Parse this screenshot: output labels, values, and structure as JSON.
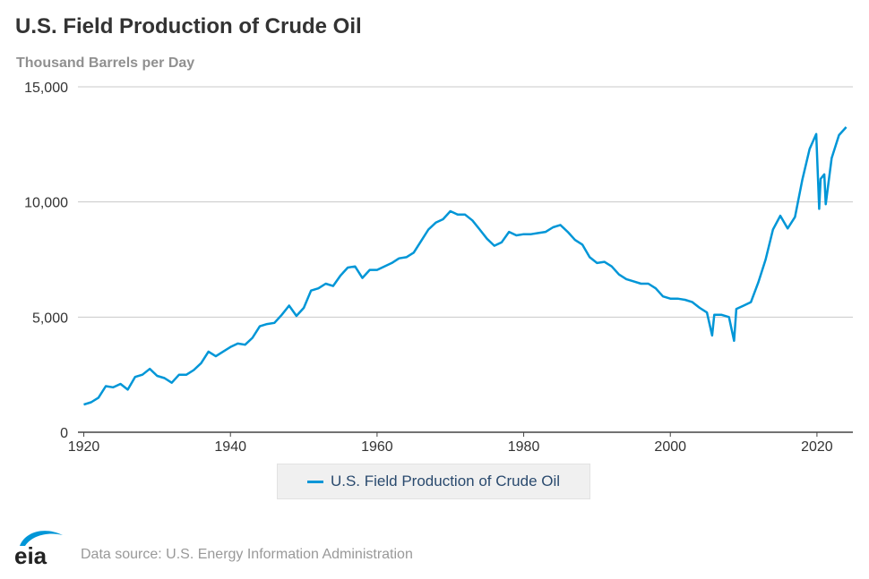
{
  "chart_data": {
    "type": "line",
    "title": "U.S. Field Production of Crude Oil",
    "subtitle": "Thousand Barrels per Day",
    "xlabel": "",
    "ylabel": "",
    "xlim": [
      1919.2,
      2024.9
    ],
    "ylim": [
      0,
      15000
    ],
    "grid": true,
    "legend_placement": "bottom",
    "x_ticks": [
      "1920",
      "1940",
      "1960",
      "1980",
      "2000",
      "2020"
    ],
    "y_ticks": [
      "0",
      "5,000",
      "10,000",
      "15,000"
    ],
    "colors": {
      "line": "#0096d7"
    },
    "series": [
      {
        "name": "U.S. Field Production of Crude Oil",
        "x": [
          1920,
          1921,
          1922,
          1923,
          1924,
          1925,
          1926,
          1927,
          1928,
          1929,
          1930,
          1931,
          1932,
          1933,
          1934,
          1935,
          1936,
          1937,
          1938,
          1939,
          1940,
          1941,
          1942,
          1943,
          1944,
          1945,
          1946,
          1947,
          1948,
          1949,
          1950,
          1951,
          1952,
          1953,
          1954,
          1955,
          1956,
          1957,
          1958,
          1959,
          1960,
          1961,
          1962,
          1963,
          1964,
          1965,
          1966,
          1967,
          1968,
          1969,
          1970,
          1971,
          1972,
          1973,
          1974,
          1975,
          1976,
          1977,
          1978,
          1979,
          1980,
          1981,
          1982,
          1983,
          1984,
          1985,
          1986,
          1987,
          1988,
          1989,
          1990,
          1991,
          1992,
          1993,
          1994,
          1995,
          1996,
          1997,
          1998,
          1999,
          2000,
          2001,
          2002,
          2003,
          2004,
          2005,
          2005.7,
          2006,
          2007,
          2008,
          2008.7,
          2009,
          2010,
          2011,
          2012,
          2013,
          2014,
          2015,
          2016,
          2017,
          2018,
          2019,
          2019.9,
          2020.3,
          2020.5,
          2021,
          2021.2,
          2022,
          2023,
          2024
        ],
        "values": [
          1200,
          1300,
          1500,
          2000,
          1950,
          2100,
          1850,
          2400,
          2500,
          2750,
          2450,
          2350,
          2150,
          2500,
          2500,
          2700,
          3000,
          3500,
          3300,
          3500,
          3700,
          3850,
          3800,
          4100,
          4600,
          4700,
          4750,
          5100,
          5500,
          5050,
          5400,
          6150,
          6250,
          6450,
          6350,
          6800,
          7150,
          7200,
          6700,
          7050,
          7050,
          7200,
          7350,
          7550,
          7600,
          7800,
          8300,
          8800,
          9100,
          9250,
          9600,
          9450,
          9450,
          9200,
          8800,
          8400,
          8100,
          8250,
          8700,
          8550,
          8600,
          8600,
          8650,
          8700,
          8900,
          9000,
          8700,
          8350,
          8150,
          7600,
          7350,
          7400,
          7200,
          6850,
          6650,
          6550,
          6450,
          6450,
          6250,
          5900,
          5800,
          5800,
          5750,
          5650,
          5400,
          5200,
          4200,
          5100,
          5100,
          5000,
          3970,
          5350,
          5500,
          5650,
          6500,
          7500,
          8800,
          9400,
          8850,
          9350,
          10950,
          12300,
          12950,
          9700,
          11000,
          11200,
          9900,
          11900,
          12900,
          13250
        ]
      }
    ]
  },
  "footer": {
    "source": "Data source: U.S. Energy Information Administration",
    "logo_text": "eia"
  }
}
